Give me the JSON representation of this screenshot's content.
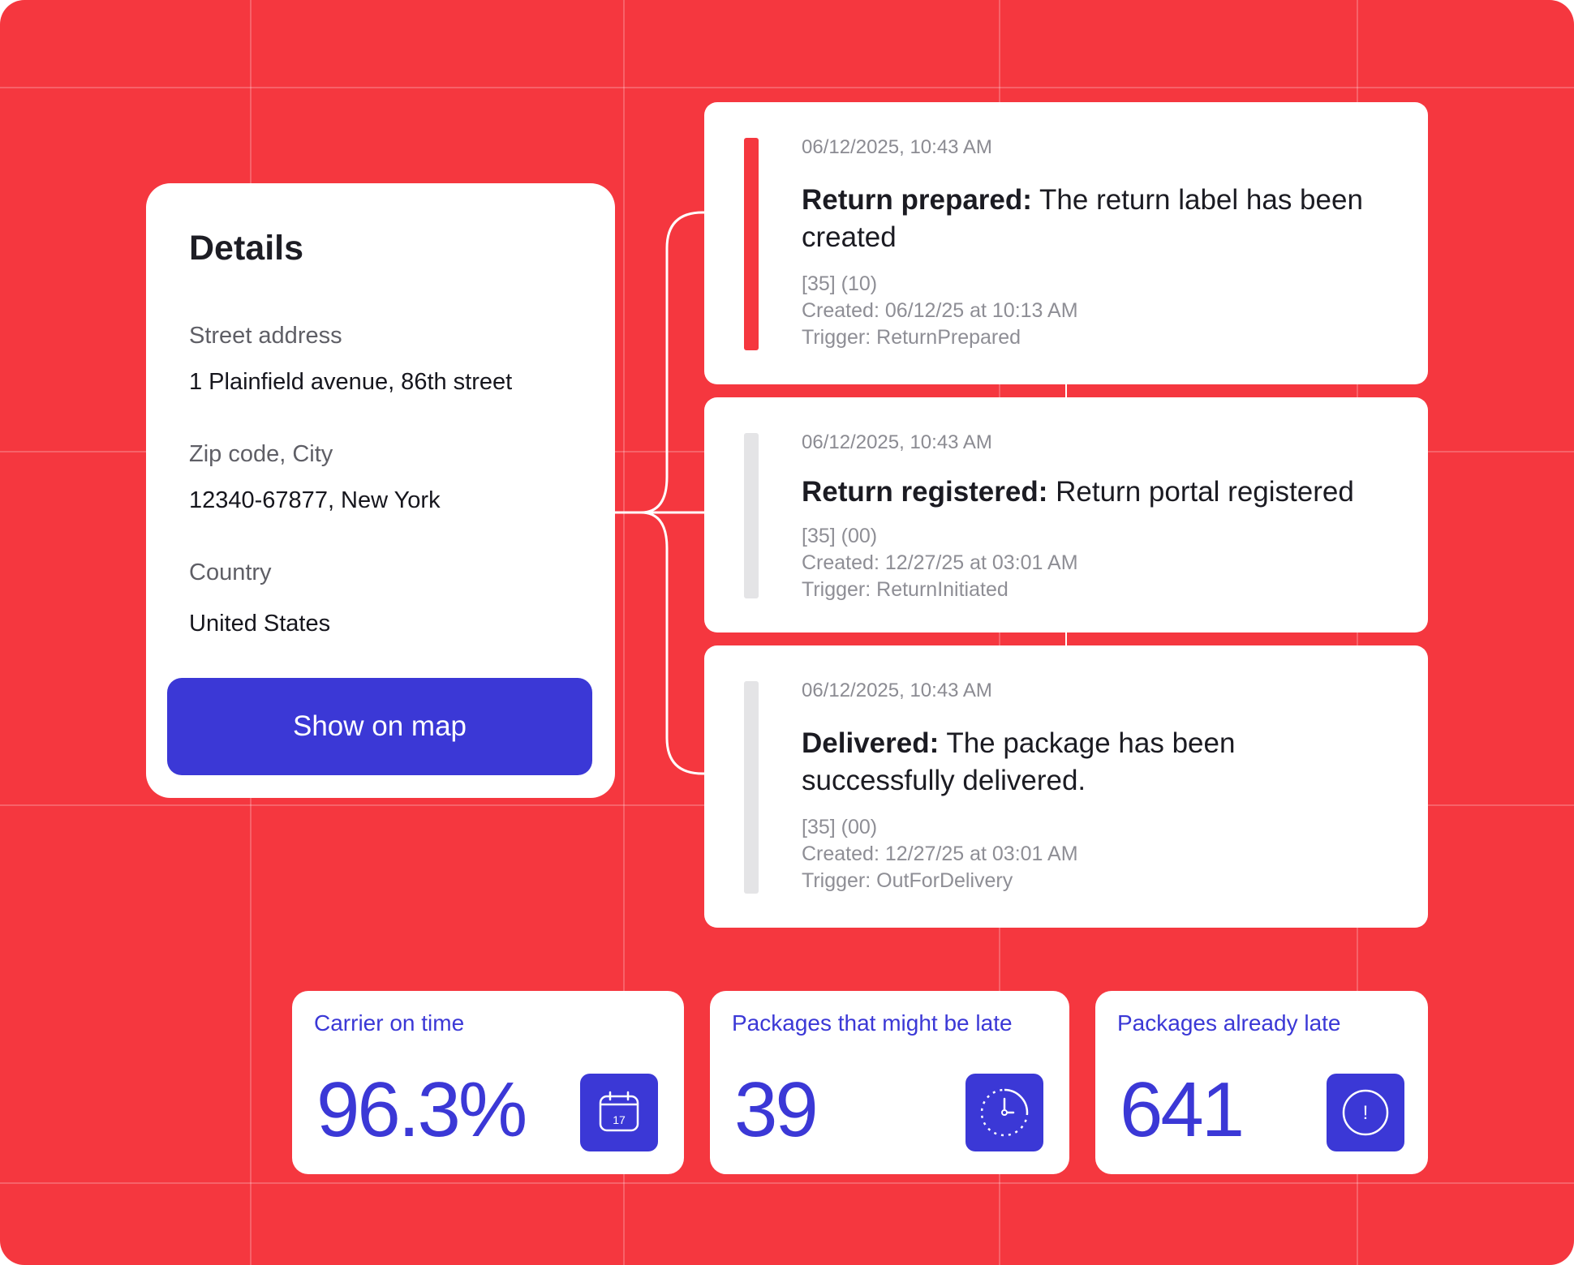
{
  "details": {
    "title": "Details",
    "street_label": "Street address",
    "street_value": "1 Plainfield avenue, 86th street",
    "zip_label": "Zip code, City",
    "zip_value": "12340-67877, New York",
    "country_label": "Country",
    "country_value": "United States",
    "map_button_label": "Show on map"
  },
  "events": [
    {
      "timestamp": "06/12/2025, 10:43 AM",
      "title": "Return prepared:",
      "description": " The return label has been created",
      "codes": "[35] (10)",
      "created": "Created: 06/12/25 at 10:13 AM",
      "trigger": "Trigger: ReturnPrepared",
      "bar_color": "#f5373f"
    },
    {
      "timestamp": "06/12/2025, 10:43 AM",
      "title": "Return registered:",
      "description": " Return portal registered",
      "codes": "[35] (00)",
      "created": "Created: 12/27/25 at 03:01 AM",
      "trigger": "Trigger: ReturnInitiated",
      "bar_color": "#e4e4e6"
    },
    {
      "timestamp": "06/12/2025, 10:43 AM",
      "title": "Delivered:",
      "description": " The package has been successfully delivered.",
      "codes": "[35] (00)",
      "created": "Created: 12/27/25 at 03:01 AM",
      "trigger": "Trigger: OutForDelivery",
      "bar_color": "#e4e4e6"
    }
  ],
  "stats": [
    {
      "label": "Carrier on time",
      "value": "96.3%",
      "icon": "calendar-icon",
      "icon_text": "17"
    },
    {
      "label": "Packages that might be late",
      "value": "39",
      "icon": "clock-icon"
    },
    {
      "label": "Packages already late",
      "value": "641",
      "icon": "alert-icon",
      "icon_text": "!"
    }
  ],
  "colors": {
    "background": "#f5373f",
    "accent": "#3b38d6",
    "card": "#ffffff"
  }
}
